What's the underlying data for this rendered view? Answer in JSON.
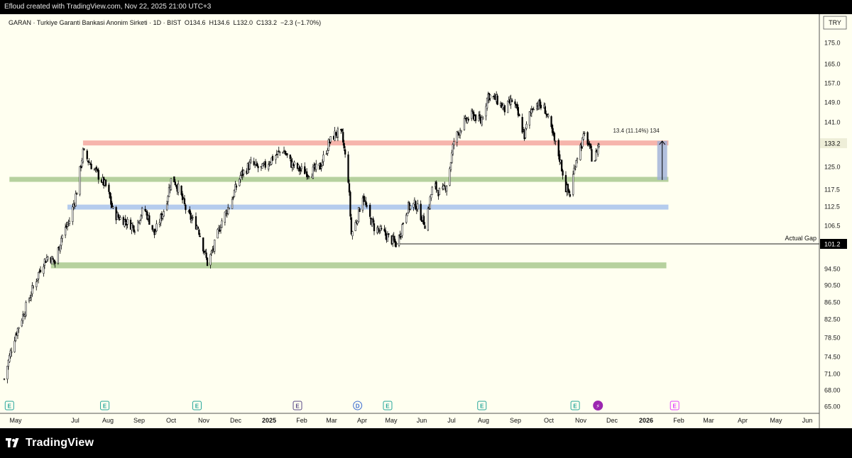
{
  "caption": "Efloud created with TradingView.com, Nov 22, 2025 21:00 UTC+3",
  "brand": {
    "name": "TradingView",
    "logo_icon": "tradingview-logo-icon"
  },
  "chart_data": {
    "type": "candlestick",
    "title": "GARAN · Turkiye Garanti Bankasi Anonim Sirketi · 1D · BIST",
    "ohlc_label": {
      "O": "O134.6",
      "H": "H134.6",
      "L": "L132.0",
      "C": "C133.2",
      "change": "−2.3 (−1.70%)"
    },
    "currency": "TRY",
    "y_ticks": [
      "175.0",
      "165.0",
      "157.0",
      "149.0",
      "141.0",
      "133.2",
      "125.0",
      "117.5",
      "112.5",
      "106.5",
      "101.2",
      "94.50",
      "90.50",
      "86.50",
      "82.50",
      "78.50",
      "74.50",
      "71.00",
      "68.00",
      "65.00"
    ],
    "x_ticks": [
      "May",
      "Jul",
      "Aug",
      "Sep",
      "Oct",
      "Nov",
      "Dec",
      "2025",
      "Feb",
      "Mar",
      "Apr",
      "May",
      "Jun",
      "Jul",
      "Aug",
      "Sep",
      "Oct",
      "Nov",
      "Dec",
      "2026",
      "Feb",
      "Mar",
      "Apr",
      "May",
      "Jun"
    ],
    "last_price": "133.2",
    "colors": {
      "up": "#ffffff",
      "down": "#000000",
      "wick": "#000000",
      "bg": "#fffff0"
    },
    "price_path": [
      [
        "2024-04-26",
        70
      ],
      [
        "2024-05-05",
        78
      ],
      [
        "2024-05-15",
        84
      ],
      [
        "2024-05-24",
        90
      ],
      [
        "2024-06-02",
        96
      ],
      [
        "2024-06-08",
        98
      ],
      [
        "2024-06-14",
        96
      ],
      [
        "2024-06-20",
        103
      ],
      [
        "2024-06-28",
        108
      ],
      [
        "2024-07-05",
        117
      ],
      [
        "2024-07-11",
        130
      ],
      [
        "2024-07-18",
        126
      ],
      [
        "2024-07-26",
        122
      ],
      [
        "2024-08-03",
        118
      ],
      [
        "2024-08-10",
        110
      ],
      [
        "2024-08-20",
        108
      ],
      [
        "2024-08-30",
        106
      ],
      [
        "2024-09-08",
        112
      ],
      [
        "2024-09-18",
        104
      ],
      [
        "2024-09-28",
        112
      ],
      [
        "2024-10-05",
        122
      ],
      [
        "2024-10-12",
        117
      ],
      [
        "2024-10-20",
        110
      ],
      [
        "2024-10-30",
        106
      ],
      [
        "2024-11-08",
        96
      ],
      [
        "2024-11-14",
        100
      ],
      [
        "2024-11-22",
        108
      ],
      [
        "2024-12-01",
        114
      ],
      [
        "2024-12-10",
        122
      ],
      [
        "2024-12-20",
        126
      ],
      [
        "2024-12-30",
        124
      ],
      [
        "2025-01-10",
        128
      ],
      [
        "2025-01-20",
        131
      ],
      [
        "2025-01-28",
        126
      ],
      [
        "2025-02-05",
        124
      ],
      [
        "2025-02-15",
        123
      ],
      [
        "2025-02-25",
        125
      ],
      [
        "2025-03-05",
        133
      ],
      [
        "2025-03-12",
        137
      ],
      [
        "2025-03-18",
        136
      ],
      [
        "2025-03-24",
        121
      ],
      [
        "2025-03-27",
        104
      ],
      [
        "2025-04-01",
        108
      ],
      [
        "2025-04-07",
        116
      ],
      [
        "2025-04-12",
        110
      ],
      [
        "2025-04-18",
        106
      ],
      [
        "2025-04-28",
        104
      ],
      [
        "2025-05-06",
        102
      ],
      [
        "2025-05-10",
        101
      ],
      [
        "2025-05-20",
        112
      ],
      [
        "2025-05-28",
        113
      ],
      [
        "2025-06-06",
        107
      ],
      [
        "2025-06-14",
        119
      ],
      [
        "2025-06-22",
        116
      ],
      [
        "2025-06-28",
        120
      ],
      [
        "2025-07-04",
        134
      ],
      [
        "2025-07-12",
        140
      ],
      [
        "2025-07-22",
        144
      ],
      [
        "2025-07-30",
        141
      ],
      [
        "2025-08-06",
        152
      ],
      [
        "2025-08-14",
        150
      ],
      [
        "2025-08-22",
        146
      ],
      [
        "2025-08-30",
        150
      ],
      [
        "2025-09-06",
        141
      ],
      [
        "2025-09-10",
        136
      ],
      [
        "2025-09-15",
        144
      ],
      [
        "2025-09-20",
        149
      ],
      [
        "2025-09-30",
        146
      ],
      [
        "2025-10-08",
        135
      ],
      [
        "2025-10-14",
        128
      ],
      [
        "2025-10-20",
        118
      ],
      [
        "2025-10-24",
        116
      ],
      [
        "2025-10-30",
        128
      ],
      [
        "2025-11-05",
        134
      ],
      [
        "2025-11-08",
        137
      ],
      [
        "2025-11-12",
        131
      ],
      [
        "2025-11-16",
        126
      ],
      [
        "2025-11-19",
        131
      ],
      [
        "2025-11-21",
        133.2
      ]
    ],
    "zones": [
      {
        "name": "resistance",
        "color": "#f4a8a0",
        "top": 134.2,
        "bottom": 132.6,
        "from": "2024-07-11",
        "to": "2026-01-27"
      },
      {
        "name": "support-upper",
        "color": "#a9c98f",
        "top": 121.6,
        "bottom": 120.2,
        "from": "2024-05-01",
        "to": "2026-01-27"
      },
      {
        "name": "mid-level",
        "color": "#a8c3ec",
        "top": 113.0,
        "bottom": 111.6,
        "from": "2024-06-26",
        "to": "2026-01-27"
      },
      {
        "name": "support-lower",
        "color": "#a9c98f",
        "top": 96.2,
        "bottom": 94.6,
        "from": "2024-06-10",
        "to": "2026-01-25"
      }
    ],
    "gap_line": {
      "label": "Actual Gap",
      "price": 101.2,
      "price_label": "101.2",
      "from": "2025-05-09"
    },
    "measure": {
      "label": "13.4 (11.14%) 134",
      "from_price": 120.6,
      "to_price": 134.0,
      "date": "2026-01-21"
    },
    "events": [
      {
        "date": "2024-05-01",
        "type": "E",
        "icon": "earnings-icon",
        "color": "#26a69a"
      },
      {
        "date": "2024-08-01",
        "type": "E",
        "icon": "earnings-icon",
        "color": "#26a69a"
      },
      {
        "date": "2024-10-29",
        "type": "E",
        "icon": "earnings-icon",
        "color": "#26a69a"
      },
      {
        "date": "2025-02-03",
        "type": "E",
        "icon": "earnings-icon",
        "color": "#5a4a87"
      },
      {
        "date": "2025-04-02",
        "type": "D",
        "icon": "dividend-icon",
        "color": "#3f6fd1"
      },
      {
        "date": "2025-05-01",
        "type": "E",
        "icon": "earnings-icon",
        "color": "#26a69a"
      },
      {
        "date": "2025-07-31",
        "type": "E",
        "icon": "earnings-icon",
        "color": "#26a69a"
      },
      {
        "date": "2025-10-29",
        "type": "E",
        "icon": "earnings-icon",
        "color": "#26a69a"
      },
      {
        "date": "2025-11-20",
        "type": "⚡",
        "icon": "lightning-icon",
        "color": "#9c27b0"
      },
      {
        "date": "2026-02-02",
        "type": "E",
        "icon": "earnings-icon",
        "color": "#e040fb"
      }
    ]
  }
}
